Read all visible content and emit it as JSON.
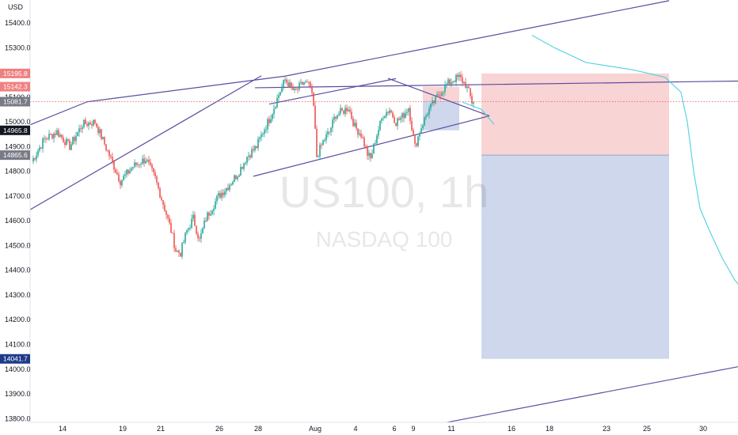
{
  "chart_data": {
    "type": "candlestick",
    "symbol": "US100, 1h",
    "subtitle": "NASDAQ 100",
    "currency": "USD",
    "y_ticks": [
      15400.0,
      15300.0,
      15200.0,
      15100.0,
      15000.0,
      14900.0,
      14800.0,
      14700.0,
      14600.0,
      14500.0,
      14400.0,
      14300.0,
      14200.0,
      14100.0,
      14000.0,
      13900.0,
      13800.0
    ],
    "x_tick_labels": [
      "14",
      "19",
      "21",
      "26",
      "28",
      "Aug",
      "4",
      "6",
      "9",
      "11",
      "16",
      "18",
      "23",
      "25",
      "30"
    ],
    "price_badges": [
      {
        "label": "15195.8",
        "value": 15195.8,
        "kind": "stop"
      },
      {
        "label": "15142.3",
        "value": 15142.3,
        "kind": "stop"
      },
      {
        "label": "15081.7",
        "value": 15081.7,
        "kind": "current"
      },
      {
        "label": "14965.8",
        "value": 14965.8,
        "kind": "target"
      },
      {
        "label": "14865.6",
        "value": 14865.6,
        "kind": "entry"
      },
      {
        "label": "14041.7",
        "value": 14041.7,
        "kind": "target"
      }
    ],
    "current_price": 15081.7,
    "price_path": [
      [
        0,
        14840
      ],
      [
        8,
        14930
      ],
      [
        16,
        14960
      ],
      [
        24,
        14900
      ],
      [
        32,
        14990
      ],
      [
        40,
        15000
      ],
      [
        48,
        14880
      ],
      [
        56,
        14760
      ],
      [
        64,
        14820
      ],
      [
        72,
        14850
      ],
      [
        78,
        14770
      ],
      [
        84,
        14650
      ],
      [
        88,
        14560
      ],
      [
        91,
        14480
      ],
      [
        94,
        14470
      ],
      [
        98,
        14560
      ],
      [
        102,
        14610
      ],
      [
        106,
        14520
      ],
      [
        110,
        14610
      ],
      [
        118,
        14700
      ],
      [
        124,
        14740
      ],
      [
        130,
        14790
      ],
      [
        136,
        14860
      ],
      [
        142,
        14900
      ],
      [
        146,
        14960
      ],
      [
        150,
        15010
      ],
      [
        156,
        15110
      ],
      [
        160,
        15170
      ],
      [
        166,
        15120
      ],
      [
        172,
        15160
      ],
      [
        176,
        15140
      ],
      [
        178,
        15060
      ],
      [
        180,
        14860
      ],
      [
        184,
        14920
      ],
      [
        188,
        14960
      ],
      [
        192,
        15030
      ],
      [
        196,
        15040
      ],
      [
        200,
        15060
      ],
      [
        204,
        14980
      ],
      [
        208,
        14950
      ],
      [
        212,
        14870
      ],
      [
        214,
        14850
      ],
      [
        218,
        14950
      ],
      [
        222,
        15030
      ],
      [
        226,
        15050
      ],
      [
        230,
        15000
      ],
      [
        234,
        15020
      ],
      [
        238,
        15060
      ],
      [
        242,
        14900
      ],
      [
        246,
        14980
      ],
      [
        250,
        15040
      ],
      [
        254,
        15080
      ],
      [
        258,
        15120
      ],
      [
        262,
        15150
      ],
      [
        266,
        15170
      ],
      [
        270,
        15180
      ],
      [
        274,
        15150
      ],
      [
        276,
        15120
      ],
      [
        278,
        15080
      ],
      [
        280,
        15090
      ]
    ],
    "projection": [
      [
        272,
        15080
      ],
      [
        284,
        15050
      ],
      [
        292,
        14990
      ]
    ],
    "projection_long": [
      [
        316,
        15350
      ],
      [
        330,
        15300
      ],
      [
        350,
        15240
      ],
      [
        380,
        15210
      ],
      [
        400,
        15180
      ],
      [
        410,
        15120
      ],
      [
        414,
        15000
      ],
      [
        418,
        14800
      ],
      [
        422,
        14650
      ],
      [
        428,
        14560
      ],
      [
        436,
        14450
      ],
      [
        444,
        14360
      ],
      [
        448,
        14330
      ]
    ],
    "colors": {
      "up": "#26a69a",
      "down": "#ef5350",
      "trendline": "#5b4da0",
      "projection": "#4dd0e1",
      "stop_zone": "#f5c6c6",
      "target_zone": "#c9d3ea",
      "current_line": "#ef5350",
      "badge_dark": "#131722",
      "badge_blue": "#1e3a8a",
      "badge_red": "#f08080",
      "badge_gray": "#787b86"
    },
    "grid": false,
    "legend": "none"
  }
}
